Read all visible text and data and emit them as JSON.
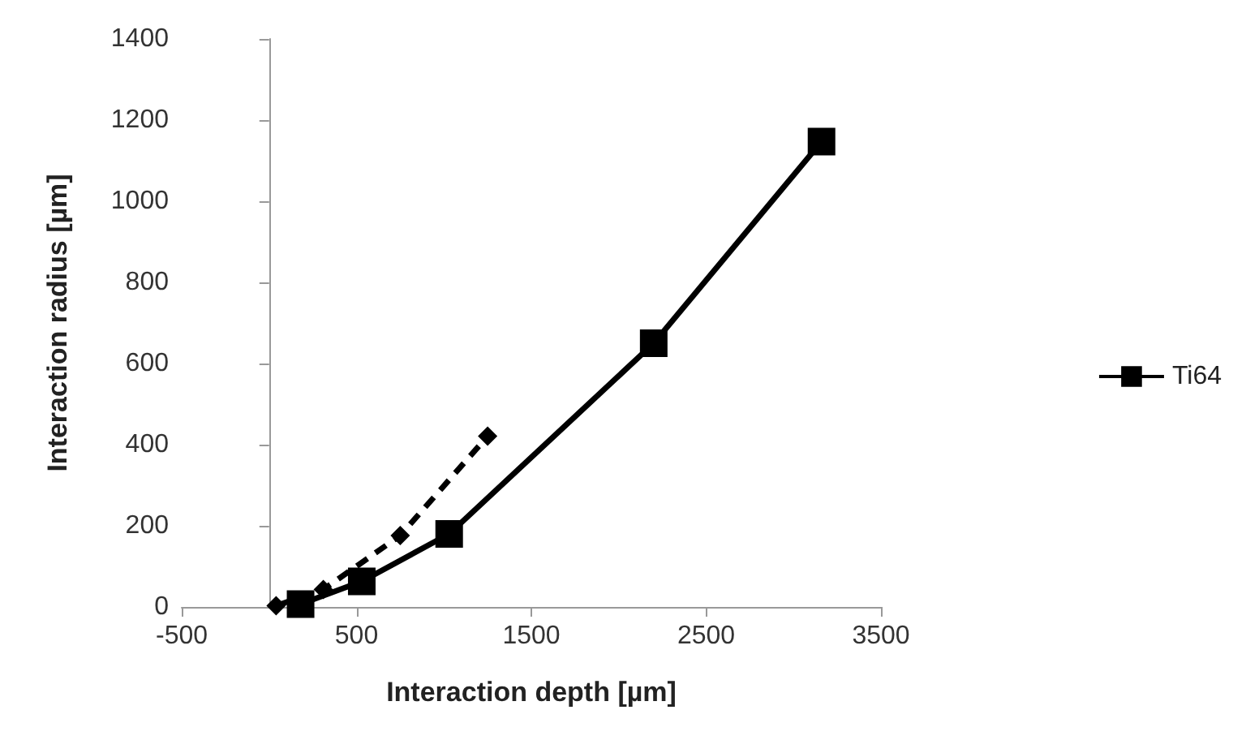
{
  "chart_data": {
    "type": "line",
    "xlabel": "Interaction depth [µm]",
    "ylabel": "Interaction radius [µm]",
    "xlim": [
      -500,
      3500
    ],
    "xticks": [
      -500,
      500,
      1500,
      2500,
      3500
    ],
    "ylim": [
      0,
      1400
    ],
    "yticks": [
      0,
      200,
      400,
      600,
      800,
      1000,
      1200,
      1400
    ],
    "grid": false,
    "legend": "right",
    "series": [
      {
        "name": "Ti64",
        "color": "#000000",
        "marker": "square",
        "line_style": "solid",
        "x": [
          180,
          530,
          1030,
          2200,
          3160
        ],
        "values": [
          7,
          63,
          180,
          650,
          1147
        ]
      },
      {
        "color": "#000000",
        "marker": "diamond",
        "line_style": "dashed",
        "x": [
          40,
          310,
          750,
          1250
        ],
        "values": [
          3,
          43,
          176,
          421
        ]
      }
    ]
  }
}
